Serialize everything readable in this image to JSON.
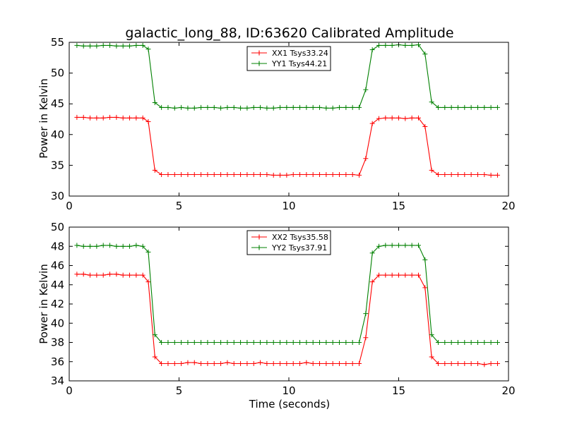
{
  "chart_data": [
    {
      "type": "line",
      "title": "galactic_long_88, ID:63620 Calibrated Amplitude",
      "xlabel": "",
      "ylabel": "Power in Kelvin",
      "xlim": [
        0,
        20
      ],
      "ylim": [
        30,
        55
      ],
      "xticks": [
        0,
        5,
        10,
        15,
        20
      ],
      "yticks": [
        30,
        35,
        40,
        45,
        50,
        55
      ],
      "legend_position": "top-center",
      "grid": false,
      "x": [
        0.35,
        0.65,
        0.95,
        1.25,
        1.55,
        1.85,
        2.15,
        2.45,
        2.75,
        3.05,
        3.35,
        3.6,
        3.9,
        4.2,
        4.5,
        4.8,
        5.1,
        5.4,
        5.7,
        6.0,
        6.3,
        6.6,
        6.9,
        7.2,
        7.5,
        7.8,
        8.1,
        8.4,
        8.7,
        9.0,
        9.3,
        9.6,
        9.9,
        10.2,
        10.5,
        10.8,
        11.1,
        11.4,
        11.7,
        12.0,
        12.3,
        12.6,
        12.9,
        13.2,
        13.5,
        13.8,
        14.1,
        14.4,
        14.7,
        15.0,
        15.3,
        15.6,
        15.9,
        16.2,
        16.5,
        16.8,
        17.1,
        17.4,
        17.7,
        18.0,
        18.3,
        18.6,
        18.9,
        19.2,
        19.5
      ],
      "series": [
        {
          "name": "XX1 Tsys33.24",
          "color": "#ff0000",
          "values": [
            42.8,
            42.8,
            42.7,
            42.7,
            42.7,
            42.8,
            42.8,
            42.7,
            42.7,
            42.7,
            42.7,
            42.1,
            34.2,
            33.5,
            33.5,
            33.5,
            33.5,
            33.5,
            33.5,
            33.5,
            33.5,
            33.5,
            33.5,
            33.5,
            33.5,
            33.5,
            33.5,
            33.5,
            33.5,
            33.5,
            33.4,
            33.4,
            33.4,
            33.5,
            33.5,
            33.5,
            33.5,
            33.5,
            33.5,
            33.5,
            33.5,
            33.5,
            33.5,
            33.4,
            36.1,
            41.8,
            42.6,
            42.7,
            42.7,
            42.7,
            42.6,
            42.7,
            42.7,
            41.3,
            34.2,
            33.5,
            33.5,
            33.5,
            33.5,
            33.5,
            33.5,
            33.5,
            33.5,
            33.4,
            33.4
          ]
        },
        {
          "name": "YY1 Tsys44.21",
          "color": "#008000",
          "values": [
            54.5,
            54.4,
            54.4,
            54.4,
            54.5,
            54.5,
            54.4,
            54.4,
            54.4,
            54.5,
            54.5,
            53.9,
            45.2,
            44.4,
            44.4,
            44.3,
            44.4,
            44.3,
            44.3,
            44.4,
            44.4,
            44.4,
            44.3,
            44.4,
            44.4,
            44.3,
            44.3,
            44.4,
            44.4,
            44.3,
            44.3,
            44.4,
            44.4,
            44.4,
            44.4,
            44.4,
            44.4,
            44.4,
            44.3,
            44.3,
            44.4,
            44.4,
            44.4,
            44.4,
            47.3,
            53.8,
            54.5,
            54.5,
            54.5,
            54.6,
            54.5,
            54.5,
            54.6,
            53.1,
            45.3,
            44.4,
            44.4,
            44.4,
            44.4,
            44.4,
            44.4,
            44.4,
            44.4,
            44.4,
            44.4
          ]
        }
      ]
    },
    {
      "type": "line",
      "title": "",
      "xlabel": "Time (seconds)",
      "ylabel": "Power in Kelvin",
      "xlim": [
        0,
        20
      ],
      "ylim": [
        34,
        50
      ],
      "xticks": [
        0,
        5,
        10,
        15,
        20
      ],
      "yticks": [
        34,
        36,
        38,
        40,
        42,
        44,
        46,
        48,
        50
      ],
      "legend_position": "top-center",
      "grid": false,
      "x": [
        0.35,
        0.65,
        0.95,
        1.25,
        1.55,
        1.85,
        2.15,
        2.45,
        2.75,
        3.05,
        3.35,
        3.6,
        3.9,
        4.2,
        4.5,
        4.8,
        5.1,
        5.4,
        5.7,
        6.0,
        6.3,
        6.6,
        6.9,
        7.2,
        7.5,
        7.8,
        8.1,
        8.4,
        8.7,
        9.0,
        9.3,
        9.6,
        9.9,
        10.2,
        10.5,
        10.8,
        11.1,
        11.4,
        11.7,
        12.0,
        12.3,
        12.6,
        12.9,
        13.2,
        13.5,
        13.8,
        14.1,
        14.4,
        14.7,
        15.0,
        15.3,
        15.6,
        15.9,
        16.2,
        16.5,
        16.8,
        17.1,
        17.4,
        17.7,
        18.0,
        18.3,
        18.6,
        18.9,
        19.2,
        19.5
      ],
      "series": [
        {
          "name": "XX2 Tsys35.58",
          "color": "#ff0000",
          "values": [
            45.1,
            45.1,
            45.0,
            45.0,
            45.0,
            45.1,
            45.1,
            45.0,
            45.0,
            45.0,
            45.0,
            44.3,
            36.5,
            35.8,
            35.8,
            35.8,
            35.8,
            35.9,
            35.9,
            35.8,
            35.8,
            35.8,
            35.8,
            35.9,
            35.8,
            35.8,
            35.8,
            35.8,
            35.9,
            35.8,
            35.8,
            35.8,
            35.8,
            35.8,
            35.8,
            35.9,
            35.8,
            35.8,
            35.8,
            35.8,
            35.8,
            35.8,
            35.8,
            35.8,
            38.5,
            44.3,
            45.0,
            45.0,
            45.0,
            45.0,
            45.0,
            45.0,
            45.0,
            43.7,
            36.5,
            35.8,
            35.8,
            35.8,
            35.8,
            35.8,
            35.8,
            35.8,
            35.7,
            35.8,
            35.8
          ]
        },
        {
          "name": "YY2 Tsys37.91",
          "color": "#008000",
          "values": [
            48.1,
            48.0,
            48.0,
            48.0,
            48.1,
            48.1,
            48.0,
            48.0,
            48.0,
            48.1,
            48.0,
            47.4,
            38.8,
            38.0,
            38.0,
            38.0,
            38.0,
            38.0,
            38.0,
            38.0,
            38.0,
            38.0,
            38.0,
            38.0,
            38.0,
            38.0,
            38.0,
            38.0,
            38.0,
            38.0,
            38.0,
            38.0,
            38.0,
            38.0,
            38.0,
            38.0,
            38.0,
            38.0,
            38.0,
            38.0,
            38.0,
            38.0,
            38.0,
            38.0,
            41.0,
            47.3,
            48.0,
            48.1,
            48.1,
            48.1,
            48.1,
            48.1,
            48.1,
            46.6,
            38.8,
            38.0,
            38.0,
            38.0,
            38.0,
            38.0,
            38.0,
            38.0,
            38.0,
            38.0,
            38.0
          ]
        }
      ]
    }
  ]
}
